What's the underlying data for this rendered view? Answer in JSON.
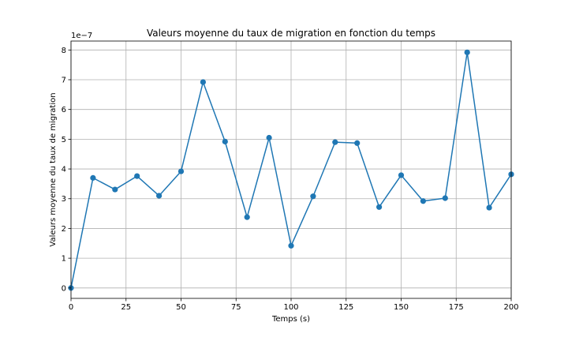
{
  "chart_data": {
    "type": "line",
    "title": "Valeurs moyenne du taux de migration en fonction du temps",
    "xlabel": "Temps (s)",
    "ylabel": "Valeurs moyenne du taux de migration",
    "y_offset_label": "1e−7",
    "xlim": [
      0,
      200
    ],
    "ylim": [
      -0.35,
      8.3
    ],
    "x_ticks": [
      0,
      25,
      50,
      75,
      100,
      125,
      150,
      175,
      200
    ],
    "y_ticks": [
      0,
      1,
      2,
      3,
      4,
      5,
      6,
      7,
      8
    ],
    "grid": true,
    "series": [
      {
        "color": "#1f77b4",
        "marker": "circle",
        "x": [
          0,
          10,
          20,
          30,
          40,
          50,
          60,
          70,
          80,
          90,
          100,
          110,
          120,
          130,
          140,
          150,
          160,
          170,
          180,
          190,
          200
        ],
        "y": [
          0,
          3.7,
          3.31,
          3.76,
          3.1,
          3.92,
          6.92,
          4.92,
          2.38,
          5.05,
          1.42,
          3.08,
          4.9,
          4.87,
          2.72,
          3.79,
          2.92,
          3.02,
          7.92,
          2.7,
          3.82
        ]
      }
    ]
  }
}
